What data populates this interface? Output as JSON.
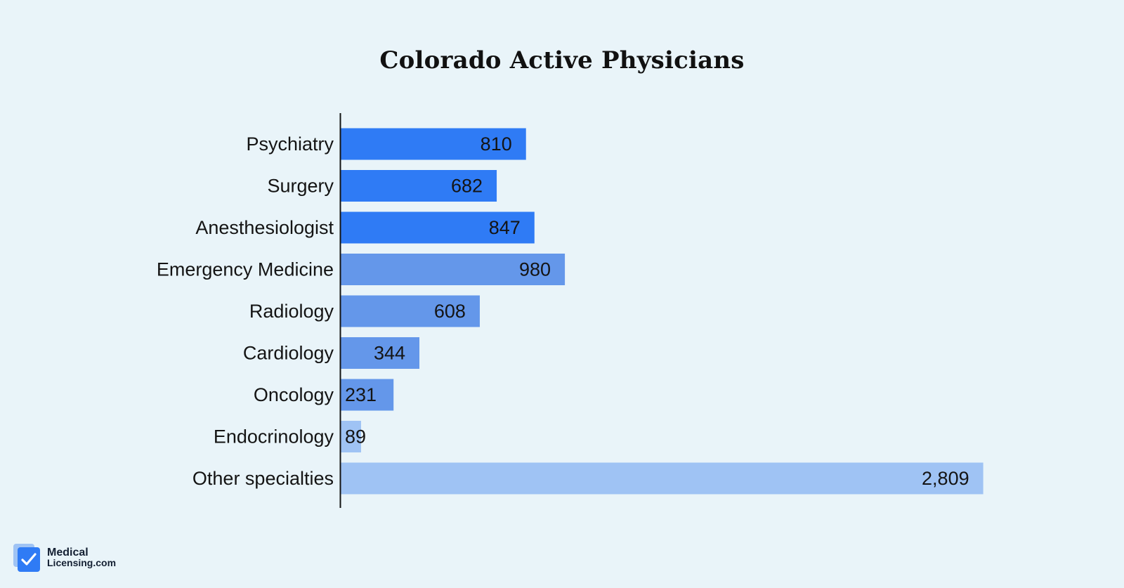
{
  "chart_data": {
    "type": "bar",
    "orientation": "horizontal",
    "title": "Colorado Active Physicians",
    "categories": [
      "Psychiatry",
      "Surgery",
      "Anesthesiologist",
      "Emergency Medicine",
      "Radiology",
      "Cardiology",
      "Oncology",
      "Endocrinology",
      "Other specialties"
    ],
    "values": [
      810,
      682,
      847,
      980,
      608,
      344,
      231,
      89,
      2809
    ],
    "value_labels": [
      "810",
      "682",
      "847",
      "980",
      "608",
      "344",
      "231",
      "89",
      "2,809"
    ],
    "bar_colors": [
      "#2f7bf5",
      "#2f7bf5",
      "#2f7bf5",
      "#6497ea",
      "#6497ea",
      "#6497ea",
      "#6497ea",
      "#9fc3f4",
      "#9fc3f4"
    ],
    "xlabel": "",
    "ylabel": "",
    "xlim": [
      0,
      3000
    ],
    "grid": false,
    "legend": "none"
  },
  "colors": {
    "background": "#e9f4f9",
    "axis": "#141414",
    "text": "#141414"
  },
  "logo": {
    "line1": "Medical",
    "line2": "Licensing.com"
  }
}
